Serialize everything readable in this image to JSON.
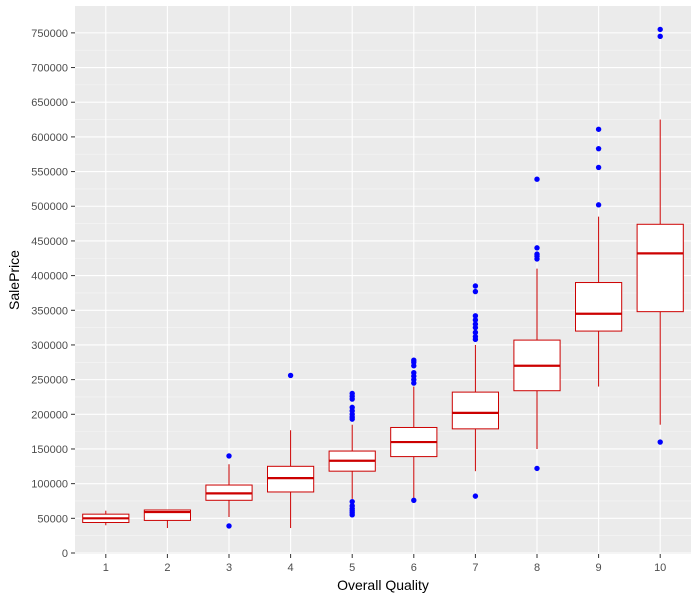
{
  "chart_data": {
    "type": "boxplot",
    "xlabel": "Overall Quality",
    "ylabel": "SalePrice",
    "ylim": [
      0,
      770000
    ],
    "y_ticks": [
      0,
      50000,
      100000,
      150000,
      200000,
      250000,
      300000,
      350000,
      400000,
      450000,
      500000,
      550000,
      600000,
      650000,
      700000,
      750000
    ],
    "categories": [
      "1",
      "2",
      "3",
      "4",
      "5",
      "6",
      "7",
      "8",
      "9",
      "10"
    ],
    "grid": true,
    "box_color": "#cc0000",
    "outlier_color": "#0000ff",
    "panel_color": "#ebebeb",
    "boxes": [
      {
        "category": "1",
        "whisker_low": 40000,
        "q1": 44000,
        "median": 50000,
        "q3": 56000,
        "whisker_high": 61000,
        "outliers": []
      },
      {
        "category": "2",
        "whisker_low": 36000,
        "q1": 47000,
        "median": 59000,
        "q3": 62000,
        "whisker_high": 62000,
        "outliers": []
      },
      {
        "category": "3",
        "whisker_low": 52000,
        "q1": 76000,
        "median": 86000,
        "q3": 98000,
        "whisker_high": 128000,
        "outliers": [
          140000,
          39000
        ]
      },
      {
        "category": "4",
        "whisker_low": 36000,
        "q1": 88000,
        "median": 108000,
        "q3": 125000,
        "whisker_high": 177000,
        "outliers": [
          256000
        ]
      },
      {
        "category": "5",
        "whisker_low": 78000,
        "q1": 118000,
        "median": 133000,
        "q3": 147000,
        "whisker_high": 185000,
        "outliers": [
          230000,
          226000,
          222000,
          210000,
          205000,
          200000,
          196000,
          193000,
          74000,
          68000,
          64000,
          61000,
          58000,
          55000
        ]
      },
      {
        "category": "6",
        "whisker_low": 77000,
        "q1": 139000,
        "median": 160000,
        "q3": 181000,
        "whisker_high": 240000,
        "outliers": [
          278000,
          275000,
          270000,
          260000,
          255000,
          250000,
          245000,
          76000
        ]
      },
      {
        "category": "7",
        "whisker_low": 118000,
        "q1": 179000,
        "median": 202000,
        "q3": 232000,
        "whisker_high": 300000,
        "outliers": [
          385000,
          377000,
          342000,
          336000,
          330000,
          325000,
          318000,
          312000,
          308000,
          82000
        ]
      },
      {
        "category": "8",
        "whisker_low": 150000,
        "q1": 234000,
        "median": 270000,
        "q3": 307000,
        "whisker_high": 410000,
        "outliers": [
          539000,
          440000,
          431000,
          428000,
          424000,
          122000
        ]
      },
      {
        "category": "9",
        "whisker_low": 240000,
        "q1": 320000,
        "median": 345000,
        "q3": 390000,
        "whisker_high": 485000,
        "outliers": [
          611000,
          583000,
          556000,
          502000
        ]
      },
      {
        "category": "10",
        "whisker_low": 185000,
        "q1": 348000,
        "median": 432000,
        "q3": 474000,
        "whisker_high": 625000,
        "outliers": [
          755000,
          745000,
          160000
        ]
      }
    ]
  }
}
